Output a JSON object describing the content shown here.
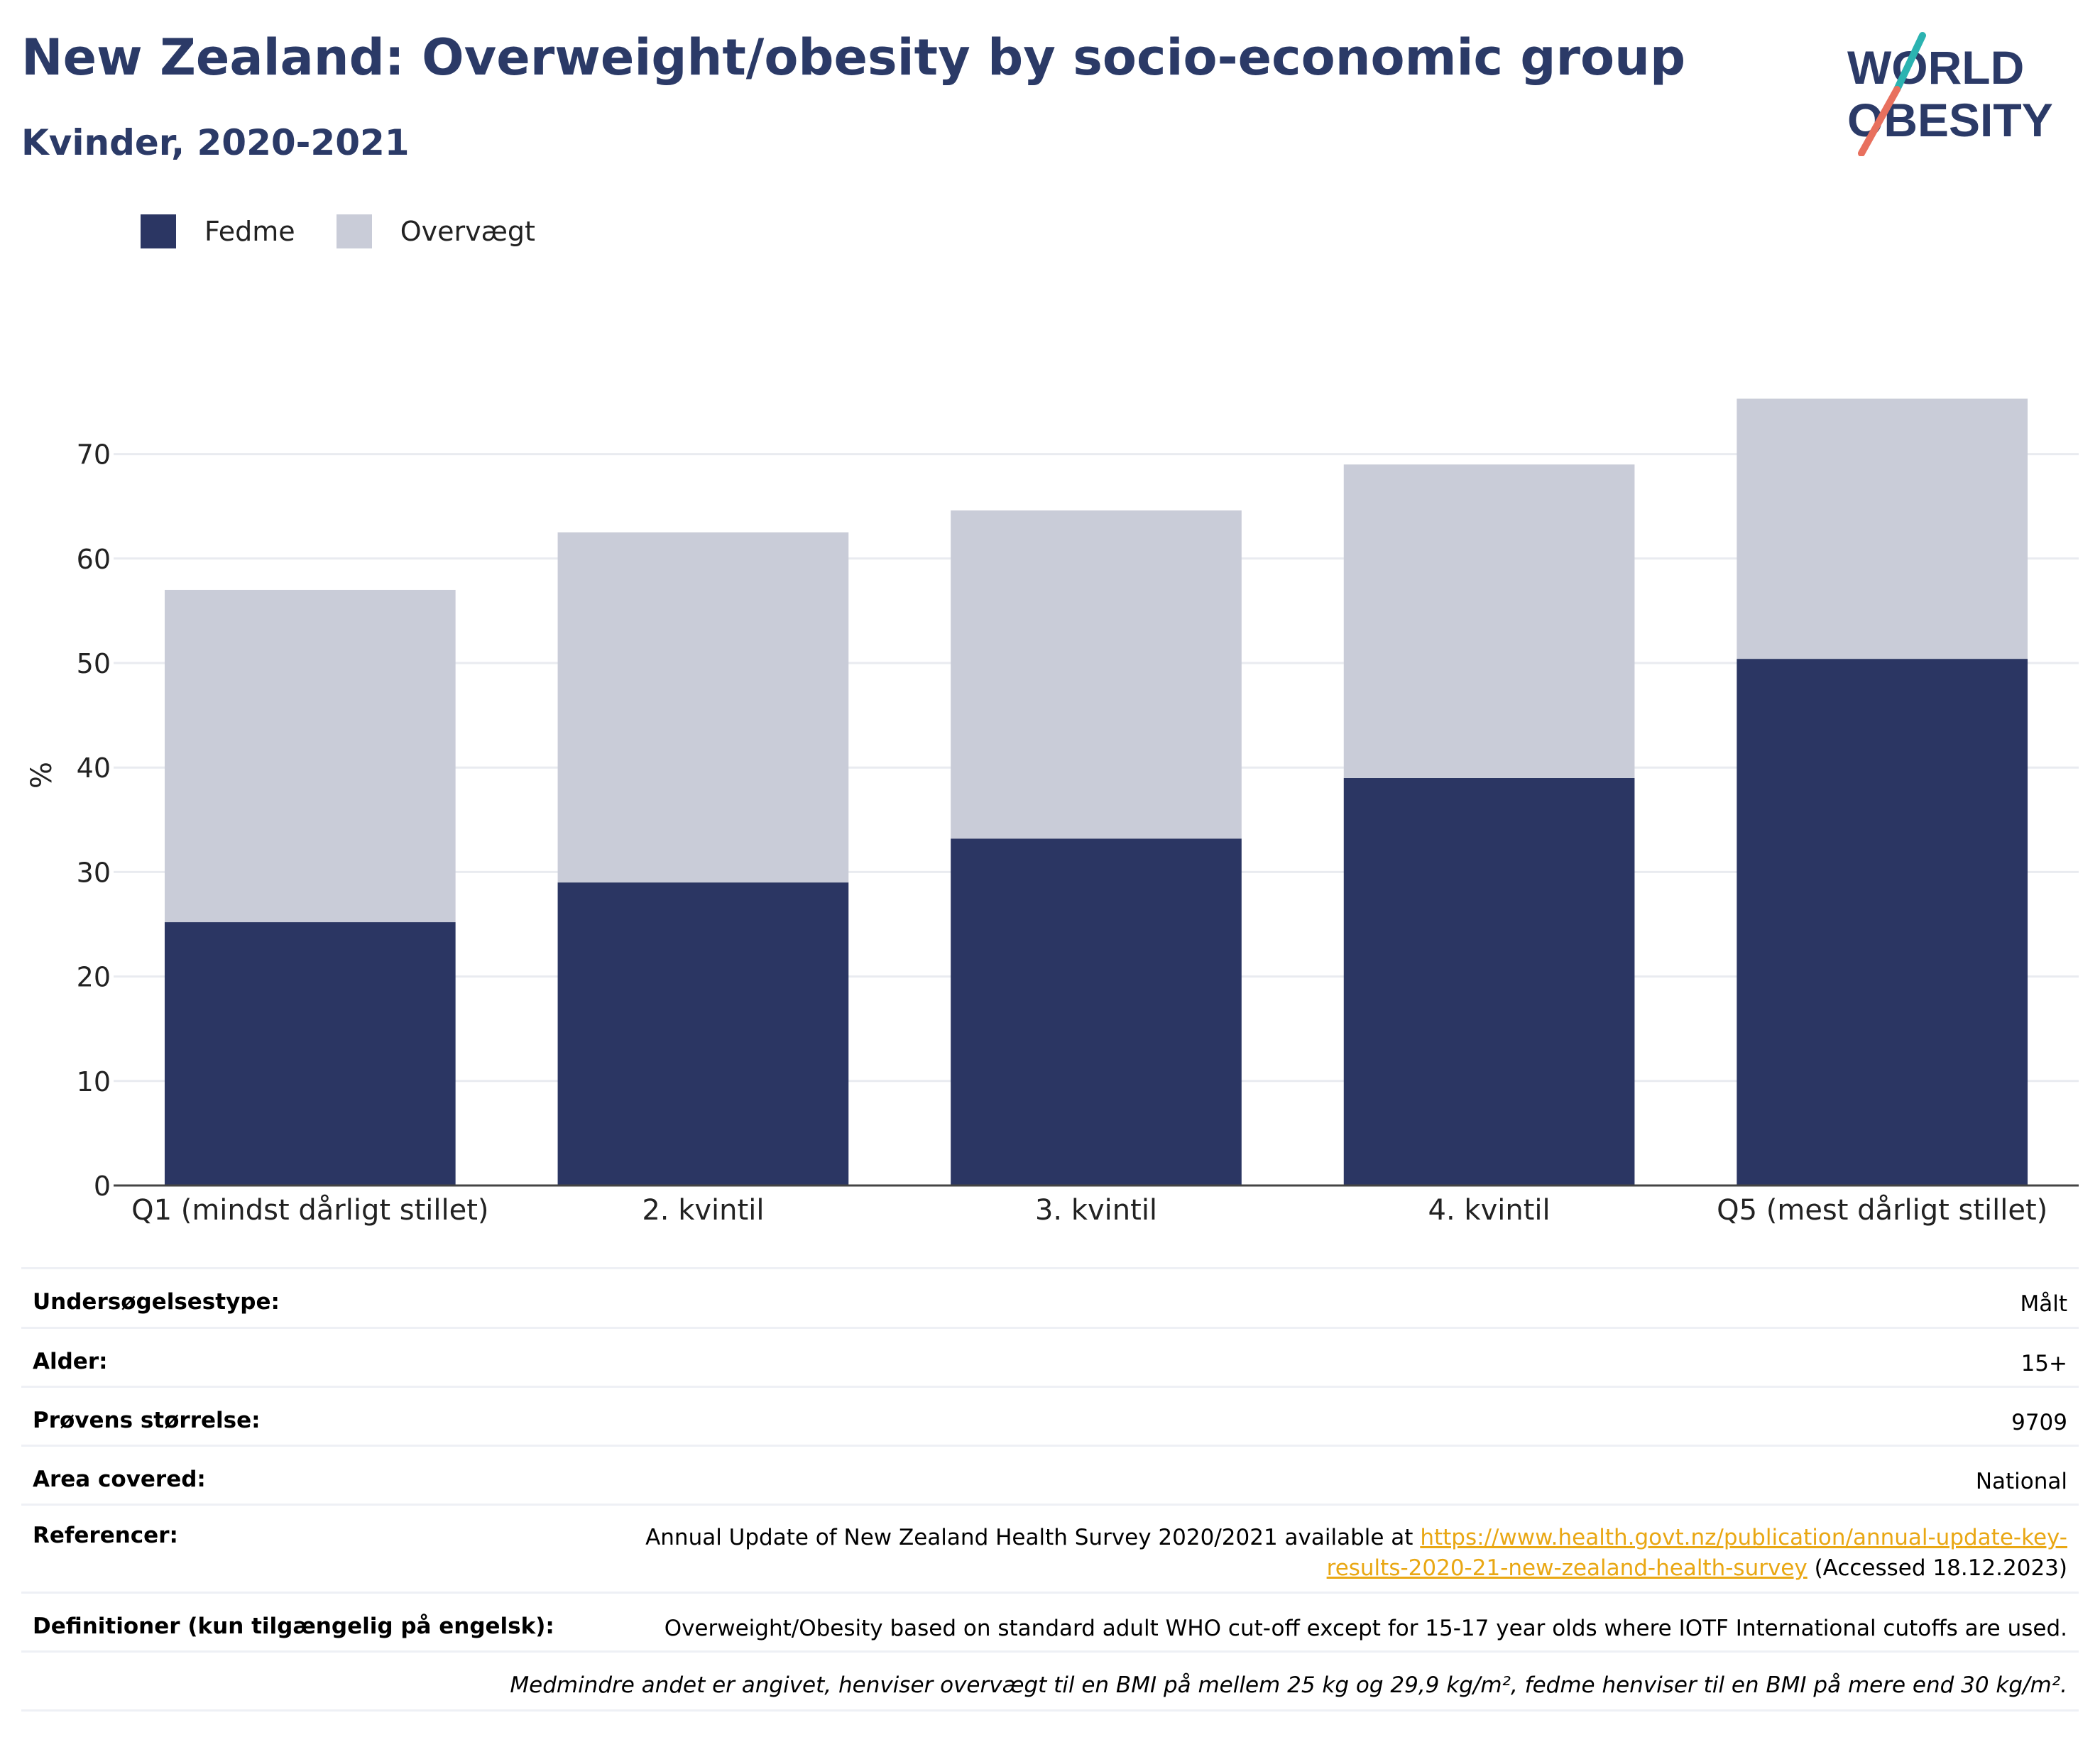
{
  "header": {
    "title": "New Zealand: Overweight/obesity by socio-economic group",
    "subtitle": "Kvinder, 2020-2021"
  },
  "logo": {
    "line1": "WORLD",
    "line2": "OBESITY",
    "accent_teal": "#2bb3b1",
    "accent_coral": "#e8705e",
    "text_color": "#2b3a67"
  },
  "colors": {
    "fedme": "#2b3663",
    "overvaegt": "#c9ccd8",
    "title": "#2b3a67",
    "link": "#e9a713"
  },
  "chart_data": {
    "type": "bar",
    "stacked": true,
    "categories": [
      "Q1 (mindst dårligt stillet)",
      "2. kvintil",
      "3. kvintil",
      "4. kvintil",
      "Q5 (mest dårligt stillet)"
    ],
    "series": [
      {
        "name": "Fedme",
        "values": [
          25.2,
          29.0,
          33.2,
          39.0,
          50.4
        ],
        "color": "#2b3663"
      },
      {
        "name": "Overvægt",
        "values": [
          31.8,
          33.5,
          31.4,
          30.0,
          24.9
        ],
        "color": "#c9ccd8"
      }
    ],
    "ylabel": "%",
    "xlabel": "",
    "ylim": [
      0,
      77
    ],
    "yticks": [
      0,
      10,
      20,
      30,
      40,
      50,
      60,
      70
    ],
    "grid": true,
    "legend": "top-left"
  },
  "meta": [
    {
      "key": "Undersøgelsestype:",
      "value": "Målt"
    },
    {
      "key": "Alder:",
      "value": "15+"
    },
    {
      "key": "Prøvens størrelse:",
      "value": "9709"
    },
    {
      "key": "Area covered:",
      "value": "National"
    }
  ],
  "references": {
    "key": "Referencer:",
    "prefix": "Annual Update of New Zealand Health Survey 2020/2021 available at ",
    "link_line1": "https://www.health.govt.nz/publication/annual-update-key-",
    "link_line2": "results-2020-21-new-zealand-health-survey",
    "suffix": " (Accessed 18.12.2023)"
  },
  "definitions": {
    "key": "Definitioner (kun tilgængelig på engelsk):",
    "value": "Overweight/Obesity based on standard adult WHO cut-off except for 15-17 year olds where IOTF International cutoffs are used."
  },
  "note": "Medmindre andet er angivet, henviser overvægt til en BMI på mellem 25 kg og 29,9 kg/m², fedme henviser til en BMI på mere end 30 kg/m²."
}
